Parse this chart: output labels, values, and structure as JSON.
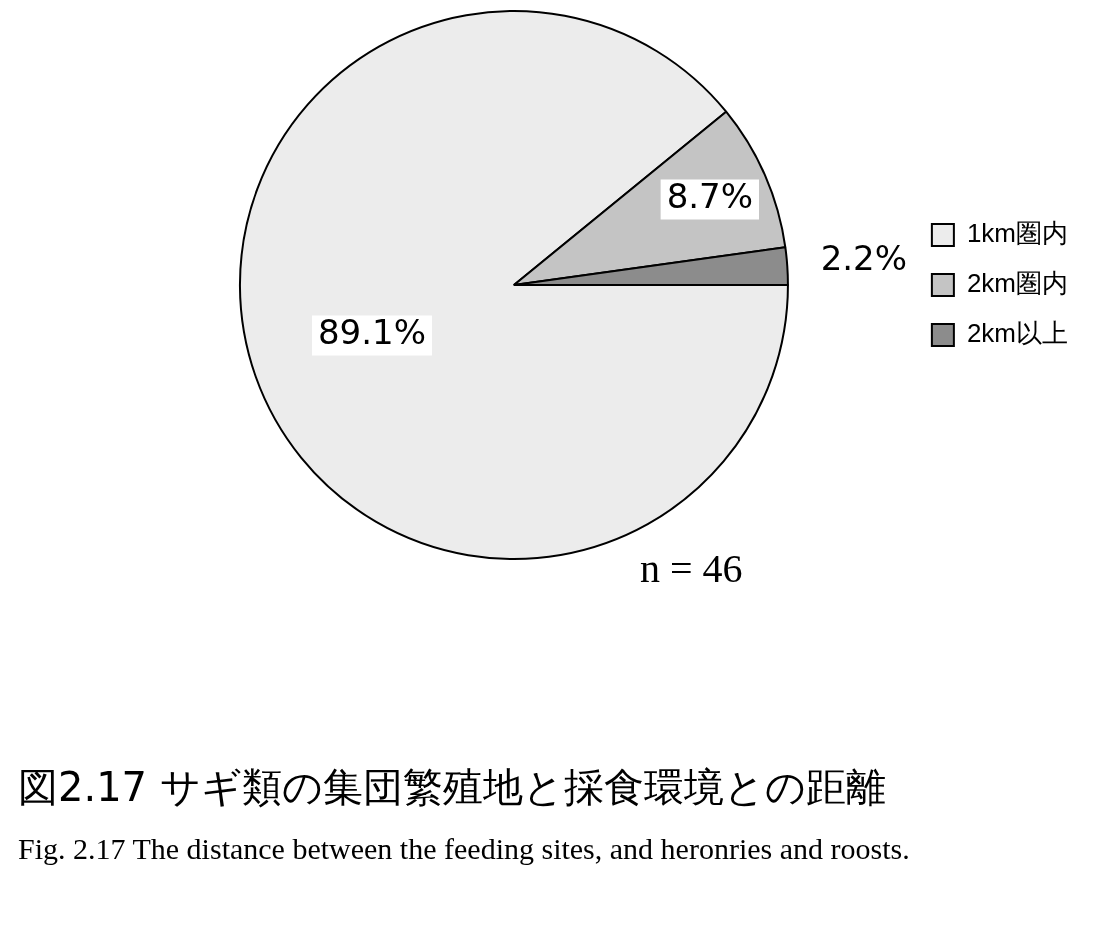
{
  "chart_data": {
    "type": "pie",
    "title": "図2.17 サギ類の集団繁殖地と採食環境との距離",
    "subtitle": "Fig. 2.17  The distance between the feeding sites, and heronries and roosts.",
    "categories": [
      "1km圏内",
      "2km圏内",
      "2km以上"
    ],
    "values": [
      89.1,
      8.7,
      2.2
    ],
    "colors": [
      "#ececec",
      "#c4c4c4",
      "#8c8c8c"
    ],
    "value_labels": [
      "89.1%",
      "8.7%",
      "2.2%"
    ],
    "legend": "right",
    "annotations": [
      "n = 46"
    ]
  }
}
